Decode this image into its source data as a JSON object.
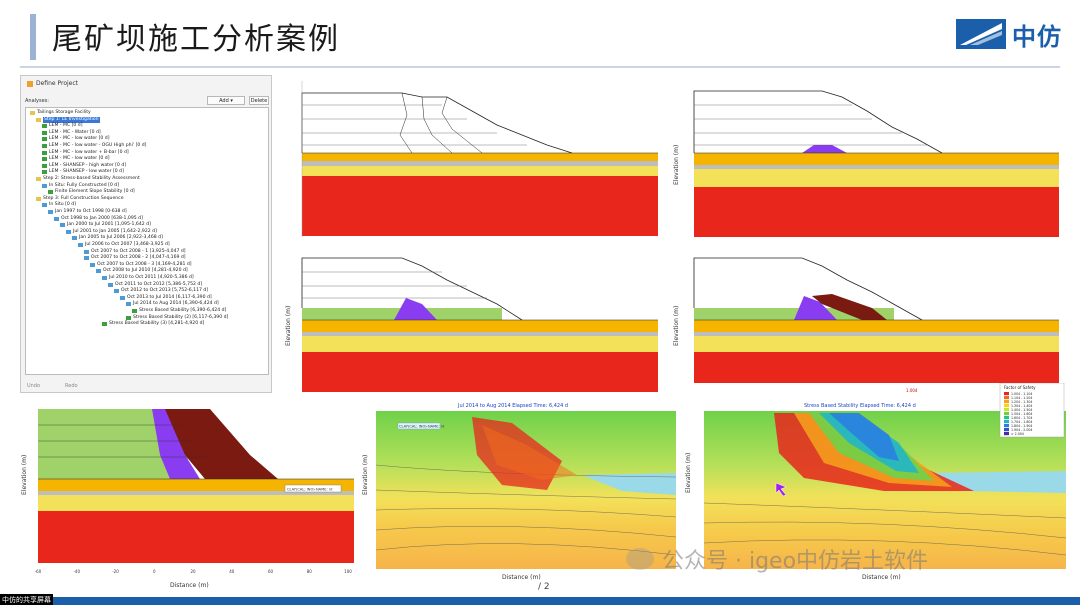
{
  "slide": {
    "title": "尾矿坝施工分析案例",
    "logo_text": "中仿",
    "watermark": "公众号 · igeo中仿岩土软件",
    "corner_tag": "中仿的共享屏幕",
    "footer_caption": "/ 2"
  },
  "define_project": {
    "title": "Define Project",
    "analyses_label": "Analyses:",
    "add_button": "Add",
    "delete_button": "Delete",
    "undo_label": "Undo",
    "redo_label": "Redo",
    "tree": [
      {
        "label": "Tailings Storage Facility",
        "level": 0,
        "type": "folder"
      },
      {
        "label": "Step 1: LE Investigation",
        "level": 1,
        "type": "folder",
        "selected": true
      },
      {
        "label": "LEM - MC [0 d]",
        "level": 2,
        "type": "an"
      },
      {
        "label": "LEM - MC - Water [0 d]",
        "level": 2,
        "type": "an"
      },
      {
        "label": "LEM - MC - low water [0 d]",
        "level": 2,
        "type": "an"
      },
      {
        "label": "LEM - MC - low water - OGU High phi' [0 d]",
        "level": 2,
        "type": "an"
      },
      {
        "label": "LEM - MC - low water + B-bar [0 d]",
        "level": 2,
        "type": "an"
      },
      {
        "label": "LEM - MC - low water [0 d]",
        "level": 2,
        "type": "an"
      },
      {
        "label": "LEM - SHANSEP - high water [0 d]",
        "level": 2,
        "type": "an"
      },
      {
        "label": "LEM - SHANSEP - low water [0 d]",
        "level": 2,
        "type": "an"
      },
      {
        "label": "Step 2: Stress-based Stability Assessment",
        "level": 1,
        "type": "folder"
      },
      {
        "label": "In Situ: Fully Constructed [0 d]",
        "level": 2,
        "type": "item"
      },
      {
        "label": "Finite Element Slope Stability [0 d]",
        "level": 3,
        "type": "an"
      },
      {
        "label": "Step 3: Full Construction Sequence",
        "level": 1,
        "type": "folder"
      },
      {
        "label": "In Situ [0 d]",
        "level": 2,
        "type": "item"
      },
      {
        "label": "Jan 1997 to Oct 1998 [0-638 d]",
        "level": 3,
        "type": "item"
      },
      {
        "label": "Oct 1998 to Jan 2000 [638-1,095 d]",
        "level": 4,
        "type": "item"
      },
      {
        "label": "Jan 2000 to Jul 2001 [1,095-1,642 d]",
        "level": 5,
        "type": "item"
      },
      {
        "label": "Jul 2001 to Jan 2005 [1,642-2,922 d]",
        "level": 6,
        "type": "item"
      },
      {
        "label": "Jan 2005 to Jul 2006 [2,922-3,468 d]",
        "level": 7,
        "type": "item"
      },
      {
        "label": "Jul 2006 to Oct 2007 [3,468-3,925 d]",
        "level": 8,
        "type": "item"
      },
      {
        "label": "Oct 2007 to Oct 2008 - 1 [3,925-4,047 d]",
        "level": 9,
        "type": "item"
      },
      {
        "label": "Oct 2007 to Oct 2008 - 2 [4,047-4,169 d]",
        "level": 9,
        "type": "item"
      },
      {
        "label": "Oct 2007 to Oct 2008 - 3 [4,169-4,281 d]",
        "level": 10,
        "type": "item"
      },
      {
        "label": "Oct 2008 to Jul 2010 [4,281-4,920 d]",
        "level": 11,
        "type": "item"
      },
      {
        "label": "Jul 2010 to Oct 2011 [4,920-5,386 d]",
        "level": 12,
        "type": "item"
      },
      {
        "label": "Oct 2011 to Oct 2012 [5,386-5,752 d]",
        "level": 13,
        "type": "item"
      },
      {
        "label": "Oct 2012 to Oct 2013 [5,752-6,117 d]",
        "level": 14,
        "type": "item"
      },
      {
        "label": "Oct 2013 to Jul 2014 [6,117-6,390 d]",
        "level": 15,
        "type": "item"
      },
      {
        "label": "Jul 2014 to Aug 2014 [6,390-6,424 d]",
        "level": 16,
        "type": "item"
      },
      {
        "label": "Stress Based Stability [6,390-6,424 d]",
        "level": 17,
        "type": "an"
      },
      {
        "label": "Stress Based Stability (2) [6,117-6,390 d]",
        "level": 16,
        "type": "an"
      },
      {
        "label": "Stress Based Stability (3) [4,281-4,920 d]",
        "level": 12,
        "type": "an"
      }
    ]
  },
  "panes": {
    "ylabel": "Elevation (m)",
    "xlabel": "Distance (m)",
    "results_a_title": "Jul 2014 to Aug 2014    Elapsed Time: 6,424 d",
    "results_b_title": "Stress Based Stability    Elapsed Time: 6,424 d",
    "fos_legend_title": "Factor of Safety",
    "fos_legend": [
      {
        "label": "1.004 - 1.104",
        "color": "#e8261c"
      },
      {
        "label": "1.104 - 1.204",
        "color": "#f36b1c"
      },
      {
        "label": "1.204 - 1.304",
        "color": "#f6a21c"
      },
      {
        "label": "1.304 - 1.404",
        "color": "#f6d41c"
      },
      {
        "label": "1.404 - 1.504",
        "color": "#c8e62a"
      },
      {
        "label": "1.504 - 1.604",
        "color": "#6fd14a"
      },
      {
        "label": "1.604 - 1.704",
        "color": "#2ec08a"
      },
      {
        "label": "1.704 - 1.804",
        "color": "#22b6c8"
      },
      {
        "label": "1.804 - 1.904",
        "color": "#2a7fe0"
      },
      {
        "label": "1.904 - 2.004",
        "color": "#3a4fd0"
      },
      {
        "label": "> 2.004",
        "color": "#4a2aa8"
      }
    ],
    "callout_a": "CLAY(CAL; INO)-NAME: nt",
    "callout_b": "CLAY(CAL; INO)-NAME: nt",
    "point_label": "1.004",
    "x_ticks": [
      "-60",
      "-40",
      "-20",
      "0",
      "20",
      "40",
      "60",
      "80",
      "100"
    ]
  }
}
